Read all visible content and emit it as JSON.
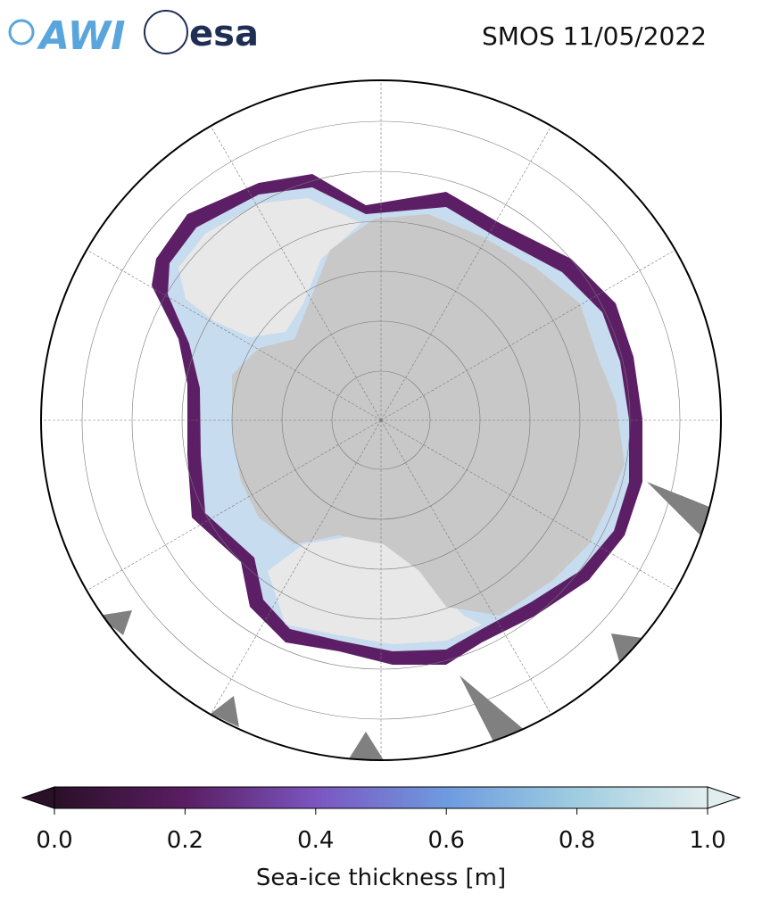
{
  "header": {
    "logos": [
      "AWI",
      "esa"
    ],
    "title": "SMOS 11/05/2022"
  },
  "colorbar": {
    "label": "Sea-ice thickness [m]",
    "range": [
      0,
      1
    ],
    "ticks": [
      {
        "value": 0,
        "label": "0.0"
      },
      {
        "value": 0.2,
        "label": "0.2"
      },
      {
        "value": 0.4,
        "label": "0.4"
      },
      {
        "value": 0.6,
        "label": "0.6"
      },
      {
        "value": 0.8,
        "label": "0.8"
      },
      {
        "value": 1,
        "label": "1.0"
      }
    ]
  }
}
